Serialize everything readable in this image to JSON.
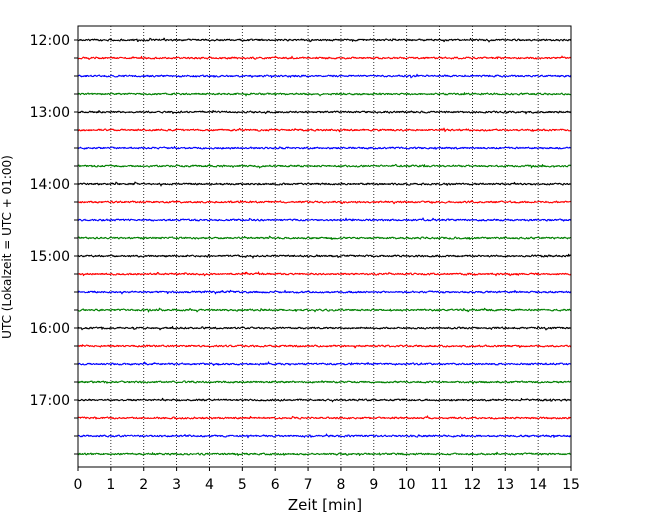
{
  "chart_data": {
    "type": "line",
    "title": "",
    "xlabel": "Zeit  [min]",
    "ylabel": "UTC (Lokalzeit = UTC + 01:00)",
    "xlim": [
      0,
      15
    ],
    "x_ticks": [
      0,
      1,
      2,
      3,
      4,
      5,
      6,
      7,
      8,
      9,
      10,
      11,
      12,
      13,
      14,
      15
    ],
    "x_tick_labels": [
      "0",
      "1",
      "2",
      "3",
      "4",
      "5",
      "6",
      "7",
      "8",
      "9",
      "10",
      "11",
      "12",
      "13",
      "14",
      "15"
    ],
    "y_tick_labels": [
      "12:00",
      "13:00",
      "14:00",
      "15:00",
      "16:00",
      "17:00"
    ],
    "grid": "vertical dotted",
    "legend": "none",
    "trace_colors": [
      "#000000",
      "#ff0000",
      "#0000ff",
      "#008000"
    ],
    "traces": [
      {
        "start": "12:00",
        "color": "#000000"
      },
      {
        "start": "12:15",
        "color": "#ff0000"
      },
      {
        "start": "12:30",
        "color": "#0000ff"
      },
      {
        "start": "12:45",
        "color": "#008000"
      },
      {
        "start": "13:00",
        "color": "#000000"
      },
      {
        "start": "13:15",
        "color": "#ff0000"
      },
      {
        "start": "13:30",
        "color": "#0000ff"
      },
      {
        "start": "13:45",
        "color": "#008000"
      },
      {
        "start": "14:00",
        "color": "#000000"
      },
      {
        "start": "14:15",
        "color": "#ff0000"
      },
      {
        "start": "14:30",
        "color": "#0000ff"
      },
      {
        "start": "14:45",
        "color": "#008000"
      },
      {
        "start": "15:00",
        "color": "#000000"
      },
      {
        "start": "15:15",
        "color": "#ff0000"
      },
      {
        "start": "15:30",
        "color": "#0000ff"
      },
      {
        "start": "15:45",
        "color": "#008000"
      },
      {
        "start": "16:00",
        "color": "#000000"
      },
      {
        "start": "16:15",
        "color": "#ff0000"
      },
      {
        "start": "16:30",
        "color": "#0000ff"
      },
      {
        "start": "16:45",
        "color": "#008000"
      },
      {
        "start": "17:00",
        "color": "#000000"
      },
      {
        "start": "17:15",
        "color": "#ff0000"
      },
      {
        "start": "17:30",
        "color": "#0000ff"
      },
      {
        "start": "17:45",
        "color": "#008000"
      }
    ]
  }
}
